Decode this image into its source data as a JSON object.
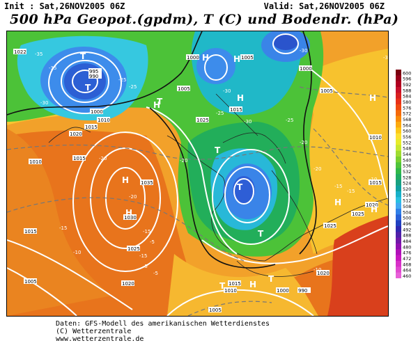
{
  "header": {
    "init": "Init : Sat,26NOV2005 06Z",
    "valid": "Valid: Sat,26NOV2005 06Z",
    "title": "500 hPa Geopot.(gpdm), T (C) und Bodendr. (hPa)"
  },
  "footer": {
    "line1": "Daten: GFS-Modell des amerikanischen Wetterdienstes",
    "line2": "(C) Wetterzentrale",
    "line3": "www.wetterzentrale.de"
  },
  "legend": {
    "values": [
      "600",
      "596",
      "592",
      "588",
      "584",
      "580",
      "576",
      "572",
      "568",
      "564",
      "560",
      "556",
      "552",
      "548",
      "544",
      "540",
      "536",
      "532",
      "528",
      "524",
      "520",
      "516",
      "512",
      "508",
      "504",
      "500",
      "496",
      "492",
      "488",
      "484",
      "480",
      "476",
      "472",
      "468",
      "464",
      "460"
    ],
    "colors": [
      "#7a0010",
      "#99001a",
      "#b00020",
      "#c8102a",
      "#d82020",
      "#e83018",
      "#f04a10",
      "#f56a0a",
      "#f98a08",
      "#fcaa10",
      "#fdc818",
      "#fde030",
      "#e8ec2a",
      "#c8e830",
      "#9fdc30",
      "#78d030",
      "#50c43a",
      "#30b848",
      "#20ac60",
      "#18a080",
      "#10a0a0",
      "#18b0c8",
      "#28c0e0",
      "#40a8f0",
      "#3080e8",
      "#2860d8",
      "#2040c0",
      "#3028b0",
      "#5020a8",
      "#7018a8",
      "#9010b0",
      "#b010b8",
      "#c818c0",
      "#d830c8",
      "#e048d0",
      "#e860d8"
    ]
  },
  "map": {
    "pressure_labels": [
      "1022",
      "1015",
      "1005",
      "995",
      "990",
      "1000",
      "1010",
      "1015",
      "1020",
      "1035",
      "1030",
      "1025",
      "1020",
      "1015",
      "1010",
      "1005",
      "1000",
      "1025",
      "1015",
      "1005",
      "1000",
      "990",
      "1000",
      "1005",
      "1010",
      "1015",
      "1020",
      "1025",
      "1025",
      "1020",
      "1015",
      "1010",
      "1005"
    ],
    "temp_labels": [
      "-35",
      "-35",
      "-30",
      "-25",
      "-25",
      "-20",
      "-20",
      "-15",
      "-15",
      "-10",
      "-5",
      "-5",
      "-5",
      "-15",
      "-20",
      "-30",
      "-30",
      "-25",
      "-20",
      "-20",
      "-15",
      "-15",
      "-10",
      "-10",
      "-25",
      "-30",
      "-35"
    ],
    "centers": [
      "T",
      "H",
      "T",
      "H",
      "T",
      "H",
      "H",
      "T",
      "T",
      "H",
      "H",
      "T",
      "H",
      "H",
      "T",
      "H",
      "T",
      "H"
    ]
  }
}
